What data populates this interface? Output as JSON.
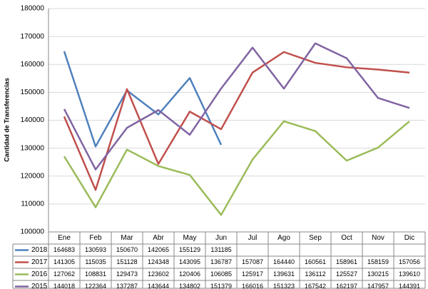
{
  "chart_data": {
    "type": "line",
    "y_label": "Cantidad de Transferencias",
    "categories": [
      "Ene",
      "Feb",
      "Mar",
      "Abr",
      "May",
      "Jun",
      "Jul",
      "Ago",
      "Sep",
      "Oct",
      "Nov",
      "Dic"
    ],
    "series": [
      {
        "name": "2018",
        "color": "#4f81bd",
        "values": [
          164683,
          130593,
          150670,
          142065,
          155129,
          131185,
          null,
          null,
          null,
          null,
          null,
          null
        ]
      },
      {
        "name": "2017",
        "color": "#c0504d",
        "values": [
          141305,
          115035,
          151128,
          124348,
          143095,
          136787,
          157087,
          164440,
          160561,
          158961,
          158159,
          157056
        ]
      },
      {
        "name": "2016",
        "color": "#9bbb59",
        "values": [
          127062,
          108831,
          129473,
          123602,
          120406,
          106085,
          125917,
          139631,
          136112,
          125527,
          130215,
          139610
        ]
      },
      {
        "name": "2015",
        "color": "#8064a2",
        "values": [
          144018,
          122364,
          137287,
          143644,
          134802,
          151379,
          166016,
          151323,
          167542,
          162197,
          147957,
          144391
        ]
      }
    ],
    "ylim": [
      100000,
      180000
    ],
    "yticks": [
      100000,
      110000,
      120000,
      130000,
      140000,
      150000,
      160000,
      170000,
      180000
    ],
    "grid": true
  }
}
